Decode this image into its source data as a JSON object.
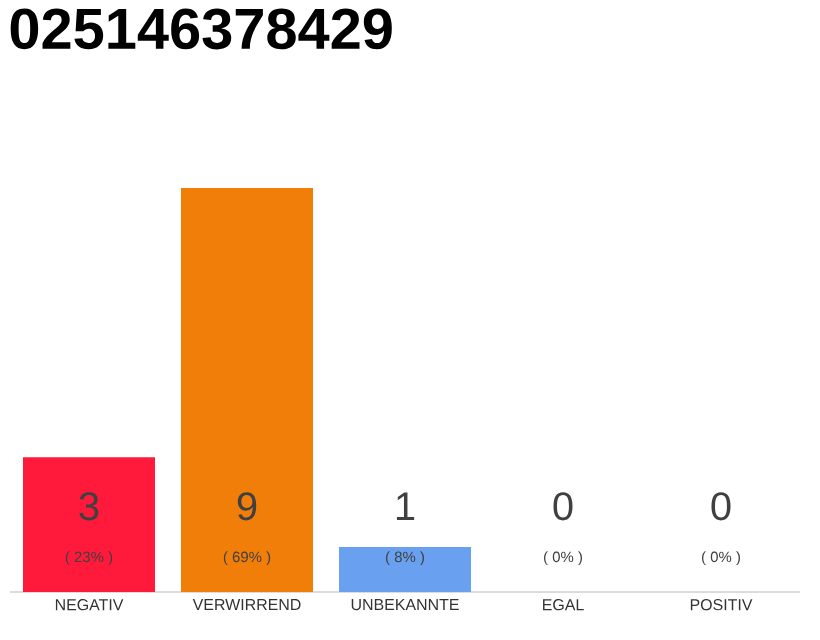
{
  "chart_data": {
    "type": "bar",
    "title": "025146378429",
    "categories": [
      "NEGATIV",
      "VERWIRREND",
      "UNBEKANNTE",
      "EGAL",
      "POSITIV"
    ],
    "values": [
      3,
      9,
      1,
      0,
      0
    ],
    "colors": [
      "#ff1a3c",
      "#f27e0a",
      "#6aa0f0",
      "#b0b0b0",
      "#b0b0b0"
    ],
    "tick_labels": "x",
    "value_labels": [
      "3",
      "9",
      "1",
      "0",
      "0"
    ],
    "annotations": [
      "( 23% )",
      "( 69% )",
      "( 8% )",
      "( 0% )",
      "( 0% )"
    ]
  }
}
